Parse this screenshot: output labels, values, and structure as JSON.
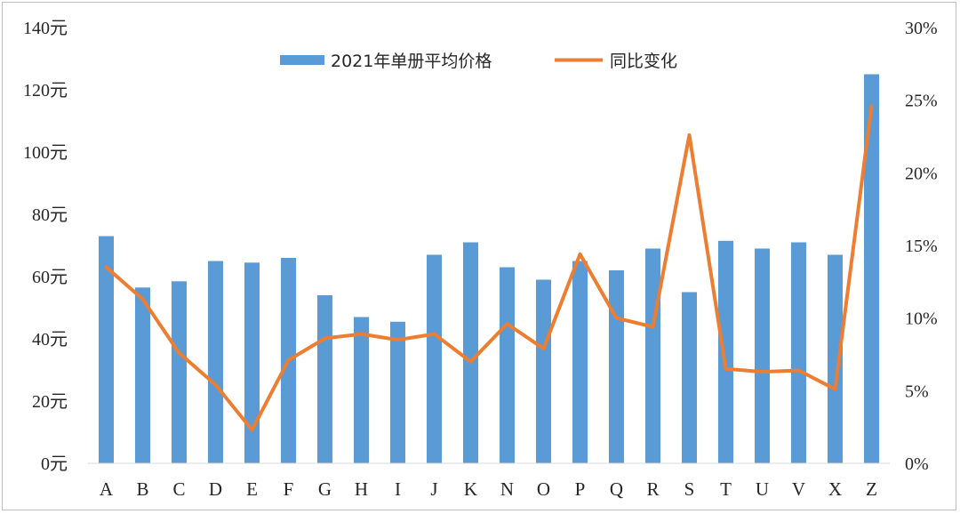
{
  "chart_data": {
    "type": "bar+line",
    "title": "",
    "categories": [
      "A",
      "B",
      "C",
      "D",
      "E",
      "F",
      "G",
      "H",
      "I",
      "J",
      "K",
      "N",
      "O",
      "P",
      "Q",
      "R",
      "S",
      "T",
      "U",
      "V",
      "X",
      "Z"
    ],
    "series": [
      {
        "name": "2021年单册平均价格",
        "type": "bar",
        "axis": "left",
        "color": "#5b9bd5",
        "values": [
          73,
          56.5,
          58.5,
          65,
          64.5,
          66,
          54,
          47,
          45.5,
          67,
          71,
          63,
          59,
          65,
          62,
          69,
          55,
          71.5,
          69,
          71,
          67,
          125
        ]
      },
      {
        "name": "同比变化",
        "type": "line",
        "axis": "right",
        "color": "#ed7d31",
        "values": [
          13.5,
          11.3,
          7.6,
          5.4,
          2.3,
          7.1,
          8.6,
          8.9,
          8.5,
          8.9,
          7.0,
          9.6,
          7.9,
          14.4,
          10.0,
          9.4,
          22.6,
          6.5,
          6.3,
          6.4,
          5.1,
          24.6
        ]
      }
    ],
    "y_left": {
      "ylim": [
        0,
        140
      ],
      "ticks": [
        "0元",
        "20元",
        "40元",
        "60元",
        "80元",
        "100元",
        "120元",
        "140元"
      ]
    },
    "y_right": {
      "ylim": [
        0,
        30
      ],
      "ticks": [
        "0%",
        "5%",
        "10%",
        "15%",
        "20%",
        "25%",
        "30%"
      ]
    },
    "legend": "top-center",
    "grid": false
  }
}
